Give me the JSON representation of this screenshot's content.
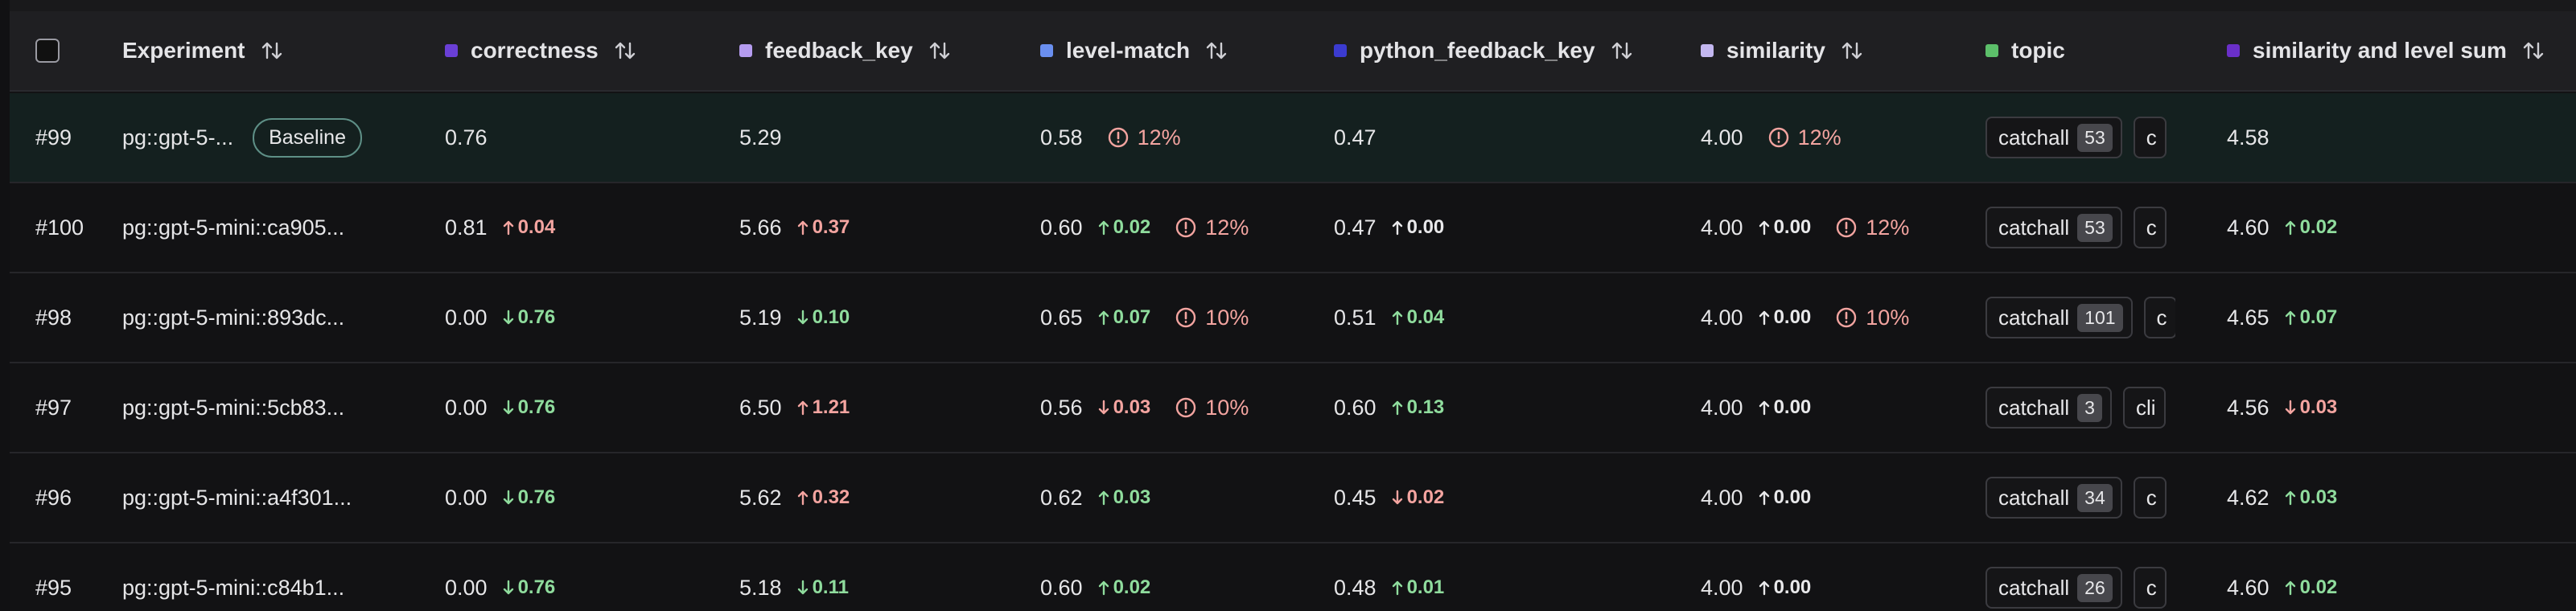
{
  "header": {
    "experiment": "Experiment",
    "columns": [
      {
        "label": "correctness",
        "color": "#6a3fd6"
      },
      {
        "label": "feedback_key",
        "color": "#b59cf0"
      },
      {
        "label": "level-match",
        "color": "#6a8ff0"
      },
      {
        "label": "python_feedback_key",
        "color": "#3b3bd0"
      },
      {
        "label": "similarity",
        "color": "#c3b7f0"
      },
      {
        "label": "topic",
        "color": "#5cbf6a"
      },
      {
        "label": "similarity and level sum",
        "color": "#6a2fc9"
      }
    ]
  },
  "colors": {
    "delta_bad": "#f3a4a0",
    "delta_good": "#8fdc9d",
    "baseline_row_bg": "#14201f"
  },
  "rows": [
    {
      "id": "#99",
      "name": "pg::gpt-5-...",
      "badge": "Baseline",
      "correctness": {
        "value": "0.76"
      },
      "feedback_key": {
        "value": "5.29"
      },
      "level_match": {
        "value": "0.58",
        "warn": "12%"
      },
      "python_feedback_key": {
        "value": "0.47"
      },
      "similarity": {
        "value": "4.00",
        "warn": "12%"
      },
      "topic": {
        "chip": "catchall",
        "count": "53",
        "next": "c"
      },
      "sum": {
        "value": "4.58"
      }
    },
    {
      "id": "#100",
      "name": "pg::gpt-5-mini::ca905...",
      "correctness": {
        "value": "0.81",
        "delta": "0.04",
        "dir": "up",
        "tone": "bad"
      },
      "feedback_key": {
        "value": "5.66",
        "delta": "0.37",
        "dir": "up",
        "tone": "bad"
      },
      "level_match": {
        "value": "0.60",
        "delta": "0.02",
        "dir": "up",
        "tone": "good",
        "warn": "12%"
      },
      "python_feedback_key": {
        "value": "0.47",
        "delta": "0.00",
        "dir": "up",
        "tone": "neutral"
      },
      "similarity": {
        "value": "4.00",
        "delta": "0.00",
        "dir": "up",
        "tone": "neutral",
        "warn": "12%"
      },
      "topic": {
        "chip": "catchall",
        "count": "53",
        "next": "c"
      },
      "sum": {
        "value": "4.60",
        "delta": "0.02",
        "dir": "up",
        "tone": "good"
      }
    },
    {
      "id": "#98",
      "name": "pg::gpt-5-mini::893dc...",
      "correctness": {
        "value": "0.00",
        "delta": "0.76",
        "dir": "down",
        "tone": "good"
      },
      "feedback_key": {
        "value": "5.19",
        "delta": "0.10",
        "dir": "down",
        "tone": "good"
      },
      "level_match": {
        "value": "0.65",
        "delta": "0.07",
        "dir": "up",
        "tone": "good",
        "warn": "10%"
      },
      "python_feedback_key": {
        "value": "0.51",
        "delta": "0.04",
        "dir": "up",
        "tone": "good"
      },
      "similarity": {
        "value": "4.00",
        "delta": "0.00",
        "dir": "up",
        "tone": "neutral",
        "warn": "10%"
      },
      "topic": {
        "chip": "catchall",
        "count": "101",
        "next": "c"
      },
      "sum": {
        "value": "4.65",
        "delta": "0.07",
        "dir": "up",
        "tone": "good"
      }
    },
    {
      "id": "#97",
      "name": "pg::gpt-5-mini::5cb83...",
      "correctness": {
        "value": "0.00",
        "delta": "0.76",
        "dir": "down",
        "tone": "good"
      },
      "feedback_key": {
        "value": "6.50",
        "delta": "1.21",
        "dir": "up",
        "tone": "bad"
      },
      "level_match": {
        "value": "0.56",
        "delta": "0.03",
        "dir": "down",
        "tone": "bad",
        "warn": "10%"
      },
      "python_feedback_key": {
        "value": "0.60",
        "delta": "0.13",
        "dir": "up",
        "tone": "good"
      },
      "similarity": {
        "value": "4.00",
        "delta": "0.00",
        "dir": "up",
        "tone": "neutral"
      },
      "topic": {
        "chip": "catchall",
        "count": "3",
        "next": "cli"
      },
      "sum": {
        "value": "4.56",
        "delta": "0.03",
        "dir": "down",
        "tone": "bad"
      }
    },
    {
      "id": "#96",
      "name": "pg::gpt-5-mini::a4f301...",
      "correctness": {
        "value": "0.00",
        "delta": "0.76",
        "dir": "down",
        "tone": "good"
      },
      "feedback_key": {
        "value": "5.62",
        "delta": "0.32",
        "dir": "up",
        "tone": "bad"
      },
      "level_match": {
        "value": "0.62",
        "delta": "0.03",
        "dir": "up",
        "tone": "good"
      },
      "python_feedback_key": {
        "value": "0.45",
        "delta": "0.02",
        "dir": "down",
        "tone": "bad"
      },
      "similarity": {
        "value": "4.00",
        "delta": "0.00",
        "dir": "up",
        "tone": "neutral"
      },
      "topic": {
        "chip": "catchall",
        "count": "34",
        "next": "c"
      },
      "sum": {
        "value": "4.62",
        "delta": "0.03",
        "dir": "up",
        "tone": "good"
      }
    },
    {
      "id": "#95",
      "name": "pg::gpt-5-mini::c84b1...",
      "correctness": {
        "value": "0.00",
        "delta": "0.76",
        "dir": "down",
        "tone": "good"
      },
      "feedback_key": {
        "value": "5.18",
        "delta": "0.11",
        "dir": "down",
        "tone": "good"
      },
      "level_match": {
        "value": "0.60",
        "delta": "0.02",
        "dir": "up",
        "tone": "good"
      },
      "python_feedback_key": {
        "value": "0.48",
        "delta": "0.01",
        "dir": "up",
        "tone": "good"
      },
      "similarity": {
        "value": "4.00",
        "delta": "0.00",
        "dir": "up",
        "tone": "neutral"
      },
      "topic": {
        "chip": "catchall",
        "count": "26",
        "next": "c"
      },
      "sum": {
        "value": "4.60",
        "delta": "0.02",
        "dir": "up",
        "tone": "good"
      }
    }
  ]
}
